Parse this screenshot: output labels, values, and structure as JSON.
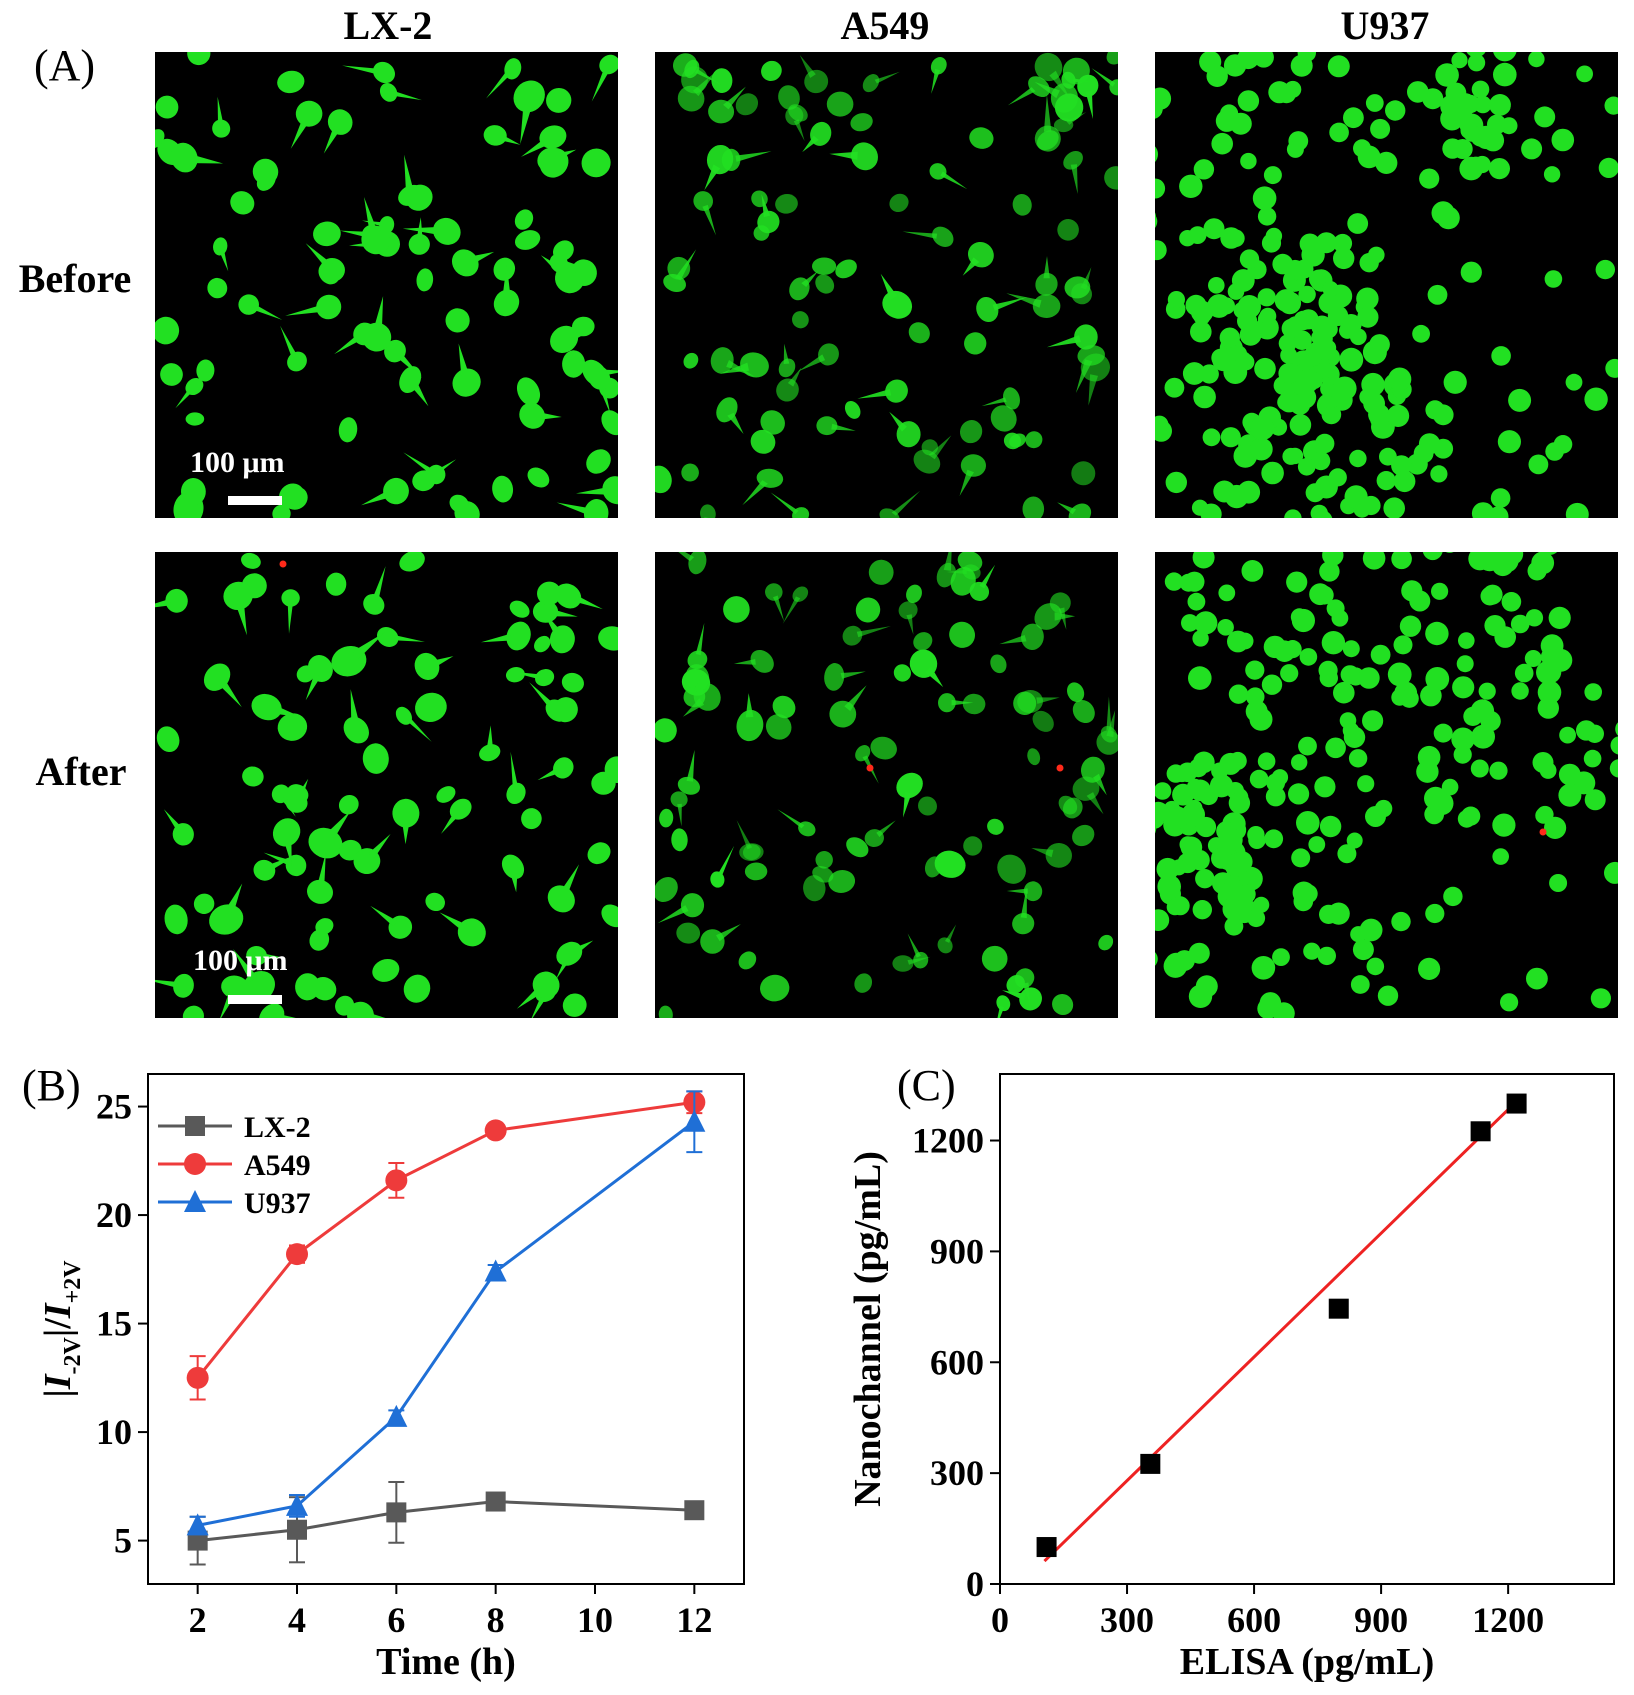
{
  "panel_a": {
    "label": "(A)",
    "columns": [
      "LX-2",
      "A549",
      "U937"
    ],
    "rows": [
      "Before",
      "After"
    ],
    "scale_bar": "100 μm",
    "colors": {
      "background": "#000000",
      "cell": "#22e022",
      "dead_cell": "#ff2a1a"
    }
  },
  "panel_b": {
    "label": "(B)"
  },
  "panel_c": {
    "label": "(C)"
  },
  "chart_data": [
    {
      "type": "line",
      "ylabel_parts": [
        "|",
        "I",
        "-2V",
        "|/",
        "I",
        "+2V"
      ],
      "xlabel": "Time (h)",
      "x": [
        2,
        4,
        6,
        8,
        12
      ],
      "xlim": [
        1,
        13
      ],
      "ylim": [
        3,
        26.5
      ],
      "xticks": [
        "2",
        "4",
        "6",
        "8",
        "10",
        "12"
      ],
      "xtick_values": [
        2,
        4,
        6,
        8,
        10,
        12
      ],
      "yticks": [
        "5",
        "10",
        "15",
        "20",
        "25"
      ],
      "ytick_values": [
        5,
        10,
        15,
        20,
        25
      ],
      "legend": "top-left",
      "series": [
        {
          "name": "LX-2",
          "marker": "square",
          "color": "#595959",
          "values": [
            5.0,
            5.5,
            6.3,
            6.8,
            6.4
          ],
          "errors": [
            1.1,
            1.5,
            1.4,
            0.3,
            0.3
          ]
        },
        {
          "name": "A549",
          "marker": "circle",
          "color": "#ee3b3b",
          "values": [
            12.5,
            18.2,
            21.6,
            23.9,
            25.2
          ],
          "errors": [
            1.0,
            0.4,
            0.8,
            0.2,
            0.5
          ]
        },
        {
          "name": "U937",
          "marker": "triangle",
          "color": "#1f6fd6",
          "values": [
            5.7,
            6.6,
            10.7,
            17.4,
            24.3
          ],
          "errors": [
            0.4,
            0.5,
            0.3,
            0.3,
            1.4
          ]
        }
      ]
    },
    {
      "type": "scatter",
      "xlabel": "ELISA (pg/mL)",
      "ylabel": "Nanochannel (pg/mL)",
      "xlim": [
        0,
        1450
      ],
      "ylim": [
        0,
        1380
      ],
      "xticks": [
        "0",
        "300",
        "600",
        "900",
        "1200"
      ],
      "xtick_values": [
        0,
        300,
        600,
        900,
        1200
      ],
      "yticks": [
        "0",
        "300",
        "600",
        "900",
        "1200"
      ],
      "ytick_values": [
        0,
        300,
        600,
        900,
        1200
      ],
      "points": [
        {
          "x": 110,
          "y": 100
        },
        {
          "x": 355,
          "y": 325
        },
        {
          "x": 800,
          "y": 745
        },
        {
          "x": 1135,
          "y": 1225
        },
        {
          "x": 1220,
          "y": 1300
        }
      ],
      "fit_line": {
        "x": [
          105,
          1210
        ],
        "y": [
          62,
          1295
        ],
        "color": "#ee2222"
      },
      "marker_color": "#000000"
    }
  ]
}
